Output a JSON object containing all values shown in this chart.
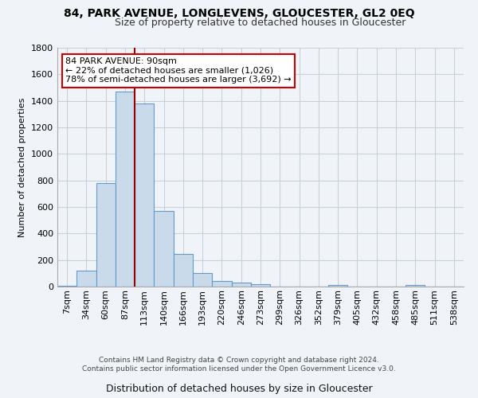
{
  "title": "84, PARK AVENUE, LONGLEVENS, GLOUCESTER, GL2 0EQ",
  "subtitle": "Size of property relative to detached houses in Gloucester",
  "xlabel": "Distribution of detached houses by size in Gloucester",
  "ylabel": "Number of detached properties",
  "bar_color": "#c9daea",
  "bar_edge_color": "#6699cc",
  "categories": [
    "7sqm",
    "34sqm",
    "60sqm",
    "87sqm",
    "113sqm",
    "140sqm",
    "166sqm",
    "193sqm",
    "220sqm",
    "246sqm",
    "273sqm",
    "299sqm",
    "326sqm",
    "352sqm",
    "379sqm",
    "405sqm",
    "432sqm",
    "458sqm",
    "485sqm",
    "511sqm",
    "538sqm"
  ],
  "values": [
    5,
    120,
    780,
    1470,
    1380,
    570,
    245,
    100,
    40,
    30,
    20,
    0,
    0,
    0,
    10,
    0,
    0,
    0,
    15,
    0,
    0
  ],
  "ylim": [
    0,
    1800
  ],
  "yticks": [
    0,
    200,
    400,
    600,
    800,
    1000,
    1200,
    1400,
    1600,
    1800
  ],
  "property_line_x": 3.5,
  "annotation_text": "84 PARK AVENUE: 90sqm\n← 22% of detached houses are smaller (1,026)\n78% of semi-detached houses are larger (3,692) →",
  "annotation_box_color": "#ffffff",
  "annotation_box_edge_color": "#cc0000",
  "footer_line1": "Contains HM Land Registry data © Crown copyright and database right 2024.",
  "footer_line2": "Contains public sector information licensed under the Open Government Licence v3.0.",
  "grid_color": "#c8d0d8",
  "background_color": "#f0f4f8"
}
